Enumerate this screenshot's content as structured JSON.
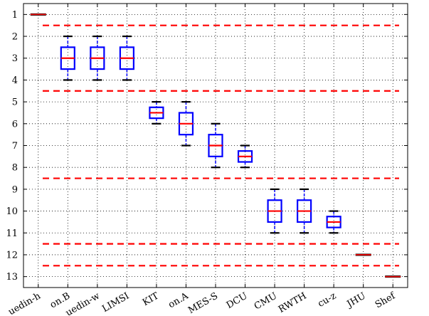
{
  "chart_data": {
    "type": "box",
    "title": "",
    "xlabel": "",
    "ylabel": "",
    "y_inverted": true,
    "ylim": [
      13.5,
      0.5
    ],
    "yticks": [
      1,
      2,
      3,
      4,
      5,
      6,
      7,
      8,
      9,
      10,
      11,
      12,
      13
    ],
    "grid": true,
    "grid_style": "dotted",
    "categories": [
      "uedin-h",
      "on.B",
      "uedin-w",
      "LIMSI",
      "KIT",
      "on.A",
      "MES-S",
      "DCU",
      "CMU",
      "RWTH",
      "cu-z",
      "JHU",
      "Shef"
    ],
    "boxes": [
      {
        "whislo": 1,
        "q1": 1,
        "med": 1,
        "q3": 1,
        "whishi": 1
      },
      {
        "whislo": 2,
        "q1": 2.5,
        "med": 3,
        "q3": 3.5,
        "whishi": 4
      },
      {
        "whislo": 2,
        "q1": 2.5,
        "med": 3,
        "q3": 3.5,
        "whishi": 4
      },
      {
        "whislo": 2,
        "q1": 2.5,
        "med": 3,
        "q3": 3.5,
        "whishi": 4
      },
      {
        "whislo": 5,
        "q1": 5.25,
        "med": 5.5,
        "q3": 5.75,
        "whishi": 6
      },
      {
        "whislo": 5,
        "q1": 5.5,
        "med": 6,
        "q3": 6.5,
        "whishi": 7
      },
      {
        "whislo": 6,
        "q1": 6.5,
        "med": 7,
        "q3": 7.5,
        "whishi": 8
      },
      {
        "whislo": 7,
        "q1": 7.25,
        "med": 7.5,
        "q3": 7.75,
        "whishi": 8
      },
      {
        "whislo": 9,
        "q1": 9.5,
        "med": 10,
        "q3": 10.5,
        "whishi": 11
      },
      {
        "whislo": 9,
        "q1": 9.5,
        "med": 10,
        "q3": 10.5,
        "whishi": 11
      },
      {
        "whislo": 10,
        "q1": 10.25,
        "med": 10.5,
        "q3": 10.75,
        "whishi": 11
      },
      {
        "whislo": 12,
        "q1": 12,
        "med": 12,
        "q3": 12,
        "whishi": 12
      },
      {
        "whislo": 13,
        "q1": 13,
        "med": 13,
        "q3": 13,
        "whishi": 13
      }
    ],
    "cluster_separators": [
      1.5,
      4.5,
      8.5,
      11.5,
      12.5
    ],
    "colors": {
      "box": "#0000ff",
      "median": "#ff0000",
      "whisker_cap": "#000000",
      "separator": "#ff0000",
      "grid": "#000000"
    }
  }
}
